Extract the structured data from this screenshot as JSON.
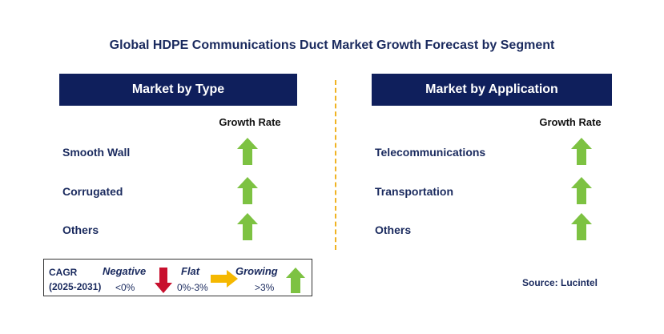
{
  "title": "Global HDPE Communications Duct Market Growth Forecast by Segment",
  "left_panel": {
    "header": "Market by Type",
    "growth_label": "Growth Rate",
    "items": [
      {
        "label": "Smooth Wall",
        "trend": "growing"
      },
      {
        "label": "Corrugated",
        "trend": "growing"
      },
      {
        "label": "Others",
        "trend": "growing"
      }
    ]
  },
  "right_panel": {
    "header": "Market by Application",
    "growth_label": "Growth Rate",
    "items": [
      {
        "label": "Telecommunications",
        "trend": "growing"
      },
      {
        "label": "Transportation",
        "trend": "growing"
      },
      {
        "label": "Others",
        "trend": "growing"
      }
    ]
  },
  "legend": {
    "cagr_label": "CAGR",
    "period": "(2025-2031)",
    "negative_label": "Negative",
    "negative_range": "<0%",
    "flat_label": "Flat",
    "flat_range": "0%-3%",
    "growing_label": "Growing",
    "growing_range": ">3%"
  },
  "source": "Source: Lucintel",
  "colors": {
    "header_bg": "#0f1f5c",
    "growing": "#7dc242",
    "negative": "#c8102e",
    "flat": "#f5b800",
    "divider": "#f0b323"
  }
}
